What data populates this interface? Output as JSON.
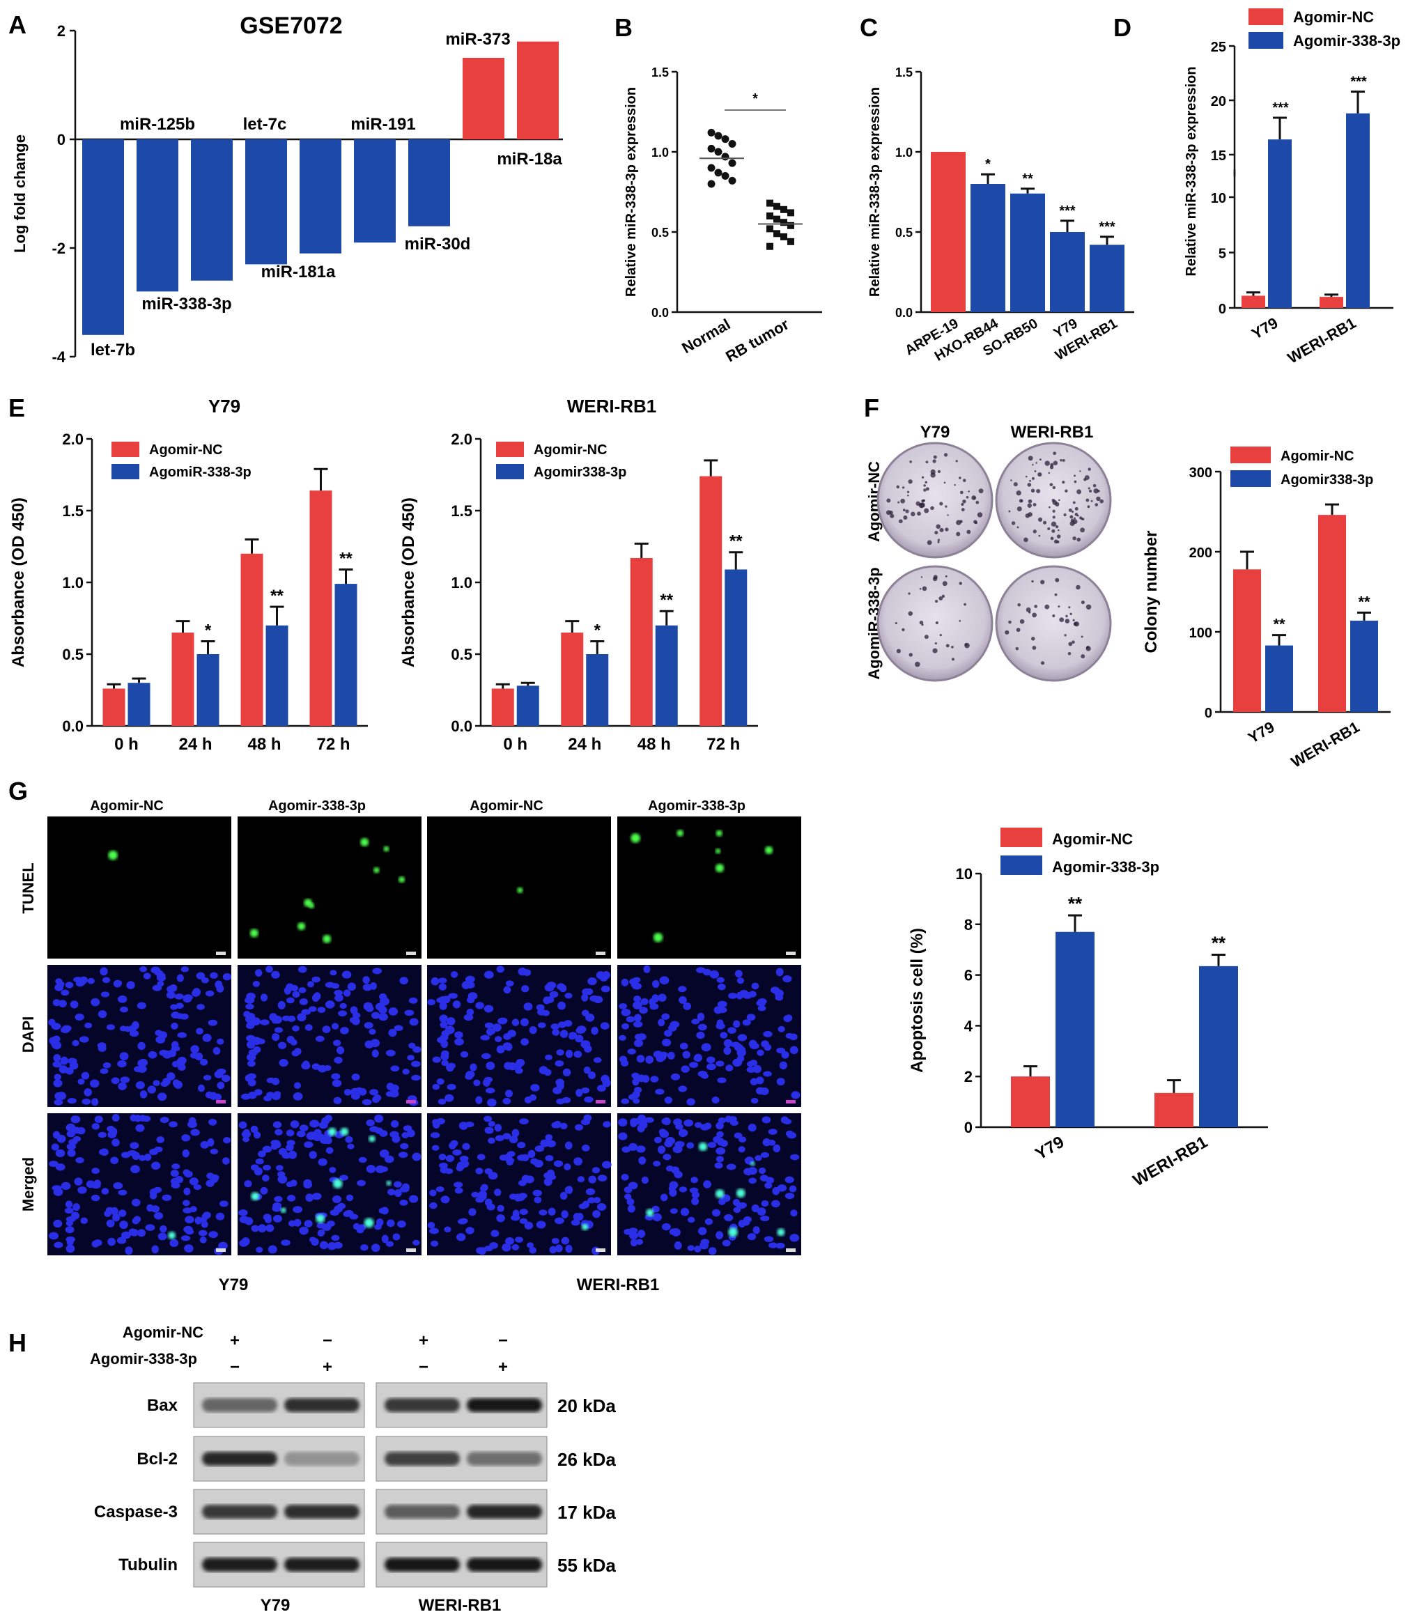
{
  "colors": {
    "red": "#e8403f",
    "blue": "#1d4aa8",
    "black": "#111111"
  },
  "panels": {
    "A": {
      "letter": "A"
    },
    "B": {
      "letter": "B"
    },
    "C": {
      "letter": "C"
    },
    "D": {
      "letter": "D"
    },
    "E": {
      "letter": "E"
    },
    "F": {
      "letter": "F"
    },
    "G": {
      "letter": "G"
    },
    "H": {
      "letter": "H"
    }
  },
  "chart_data": [
    {
      "id": "A",
      "type": "bar",
      "title": "GSE7072",
      "ylabel": "Log fold change",
      "ylim": [
        -4,
        2
      ],
      "yticks": [
        2,
        0,
        -2,
        -4
      ],
      "categories": [
        "let-7b",
        "miR-338-3p",
        "miR-125b",
        "miR-181a",
        "let-7c",
        "miR-30d",
        "miR-191",
        "miR-373",
        "miR-18a"
      ],
      "values": [
        -3.6,
        -2.8,
        -2.6,
        -2.3,
        -2.1,
        -1.9,
        -1.6,
        1.5,
        1.8
      ],
      "bar_colors": [
        "blue",
        "blue",
        "blue",
        "blue",
        "blue",
        "blue",
        "blue",
        "red",
        "red"
      ]
    },
    {
      "id": "B",
      "type": "scatter",
      "ylabel": "Relative miR-338-3p expression",
      "ylim": [
        0,
        1.5
      ],
      "yticks": [
        "0.0",
        "0.5",
        "1.0",
        "1.5"
      ],
      "categories": [
        "Normal",
        "RB tumor"
      ],
      "series": [
        {
          "values": [
            1.12,
            1.1,
            1.08,
            1.05,
            1.02,
            1.0,
            0.97,
            0.93,
            0.9,
            0.87,
            0.85,
            0.82,
            0.8
          ]
        },
        {
          "values": [
            0.68,
            0.66,
            0.64,
            0.62,
            0.6,
            0.58,
            0.56,
            0.54,
            0.52,
            0.49,
            0.47,
            0.44,
            0.41
          ]
        }
      ],
      "means": [
        0.96,
        0.55
      ],
      "annotations": [
        "*"
      ]
    },
    {
      "id": "C",
      "type": "bar",
      "ylabel": "Relative miR-338-3p expression",
      "ylim": [
        0,
        1.5
      ],
      "yticks": [
        "0.0",
        "0.5",
        "1.0",
        "1.5"
      ],
      "categories": [
        "ARPE-19",
        "HXO-RB44",
        "SO-RB50",
        "Y79",
        "WERI-RB1"
      ],
      "values": [
        1.0,
        0.8,
        0.74,
        0.5,
        0.42
      ],
      "errors": [
        0,
        0.06,
        0.03,
        0.07,
        0.05
      ],
      "significance": [
        "",
        "*",
        "**",
        "***",
        "***"
      ],
      "bar_colors": [
        "red",
        "blue",
        "blue",
        "blue",
        "blue"
      ]
    },
    {
      "id": "D",
      "type": "bar",
      "ylabel": "Relative miR-338-3p expression",
      "ylim": [
        0,
        25
      ],
      "yticks": [
        0,
        5,
        10,
        15,
        20,
        25
      ],
      "axis_break": [
        12.5,
        13
      ],
      "categories": [
        "Y79",
        "WERI-RB1"
      ],
      "series": [
        {
          "name": "Agomir-NC",
          "color": "red",
          "values": [
            1.1,
            1.0
          ],
          "errors": [
            0.3,
            0.2
          ]
        },
        {
          "name": "Agomir-338-3p",
          "color": "blue",
          "values": [
            16.4,
            18.8
          ],
          "errors": [
            2.0,
            2.0
          ]
        }
      ],
      "significance": [
        "***",
        "***"
      ]
    },
    {
      "id": "E1",
      "type": "bar",
      "title": "Y79",
      "ylabel": "Absorbance (OD 450)",
      "ylim": [
        0,
        2.0
      ],
      "yticks": [
        "0.0",
        "0.5",
        "1.0",
        "1.5",
        "2.0"
      ],
      "categories": [
        "0 h",
        "24 h",
        "48 h",
        "72 h"
      ],
      "series": [
        {
          "name": "Agomir-NC",
          "color": "red",
          "values": [
            0.26,
            0.65,
            1.2,
            1.64
          ],
          "errors": [
            0.03,
            0.08,
            0.1,
            0.15
          ]
        },
        {
          "name": "AgomiR-338-3p",
          "color": "blue",
          "values": [
            0.3,
            0.5,
            0.7,
            0.99
          ],
          "errors": [
            0.03,
            0.09,
            0.13,
            0.1
          ]
        }
      ],
      "significance": [
        "",
        "*",
        "**",
        "**"
      ]
    },
    {
      "id": "E2",
      "type": "bar",
      "title": "WERI-RB1",
      "ylabel": "Absorbance (OD 450)",
      "ylim": [
        0,
        2.0
      ],
      "yticks": [
        "0.0",
        "0.5",
        "1.0",
        "1.5",
        "2.0"
      ],
      "categories": [
        "0 h",
        "24 h",
        "48 h",
        "72 h"
      ],
      "series": [
        {
          "name": "Agomir-NC",
          "color": "red",
          "values": [
            0.26,
            0.65,
            1.17,
            1.74
          ],
          "errors": [
            0.03,
            0.08,
            0.1,
            0.11
          ]
        },
        {
          "name": "Agomir338-3p",
          "color": "blue",
          "values": [
            0.28,
            0.5,
            0.7,
            1.09
          ],
          "errors": [
            0.02,
            0.09,
            0.1,
            0.12
          ]
        }
      ],
      "significance": [
        "",
        "*",
        "**",
        "**"
      ]
    },
    {
      "id": "F",
      "type": "bar",
      "ylabel": "Colony number",
      "ylim": [
        0,
        300
      ],
      "yticks": [
        0,
        100,
        200,
        300
      ],
      "categories": [
        "Y79",
        "WERI-RB1"
      ],
      "series": [
        {
          "name": "Agomir-NC",
          "color": "red",
          "values": [
            178,
            246
          ],
          "errors": [
            22,
            13
          ]
        },
        {
          "name": "Agomir338-3p",
          "color": "blue",
          "values": [
            83,
            114
          ],
          "errors": [
            13,
            10
          ]
        }
      ],
      "significance": [
        "**",
        "**"
      ]
    },
    {
      "id": "G",
      "type": "bar",
      "ylabel": "Apoptosis cell (%)",
      "ylim": [
        0,
        10
      ],
      "yticks": [
        0,
        2,
        4,
        6,
        8,
        10
      ],
      "categories": [
        "Y79",
        "WERI-RB1"
      ],
      "series": [
        {
          "name": "Agomir-NC",
          "color": "red",
          "values": [
            2.0,
            1.35
          ],
          "errors": [
            0.4,
            0.5
          ]
        },
        {
          "name": "Agomir-338-3p",
          "color": "blue",
          "values": [
            7.7,
            6.35
          ],
          "errors": [
            0.65,
            0.45
          ]
        }
      ],
      "significance": [
        "**",
        "**"
      ]
    }
  ],
  "plates": {
    "col_labels": [
      "Y79",
      "WERI-RB1"
    ],
    "row_labels": [
      "Agomir-NC",
      "AgomiR-338-3p"
    ]
  },
  "micrographs": {
    "col_labels": [
      "Agomir-NC",
      "Agomir-338-3p",
      "Agomir-NC",
      "Agomir-338-3p"
    ],
    "row_labels": [
      "TUNEL",
      "DAPI",
      "Merged"
    ],
    "group_labels": [
      "Y79",
      "WERI-RB1"
    ]
  },
  "western": {
    "treatment_labels": [
      "Agomir-NC",
      "Agomir-338-3p"
    ],
    "treatment_signs": [
      [
        "+",
        "−",
        "+",
        "−"
      ],
      [
        "−",
        "+",
        "−",
        "+"
      ]
    ],
    "proteins": [
      "Bax",
      "Bcl-2",
      "Caspase-3",
      "Tubulin"
    ],
    "sizes": [
      "20  kDa",
      "26  kDa",
      "17  kDa",
      "55  kDa"
    ],
    "band_intensity": [
      [
        0.55,
        0.85,
        0.8,
        1.0
      ],
      [
        0.9,
        0.3,
        0.75,
        0.5
      ],
      [
        0.8,
        0.85,
        0.6,
        0.9
      ],
      [
        0.95,
        0.95,
        1.0,
        1.0
      ]
    ],
    "group_labels": [
      "Y79",
      "WERI-RB1"
    ]
  }
}
